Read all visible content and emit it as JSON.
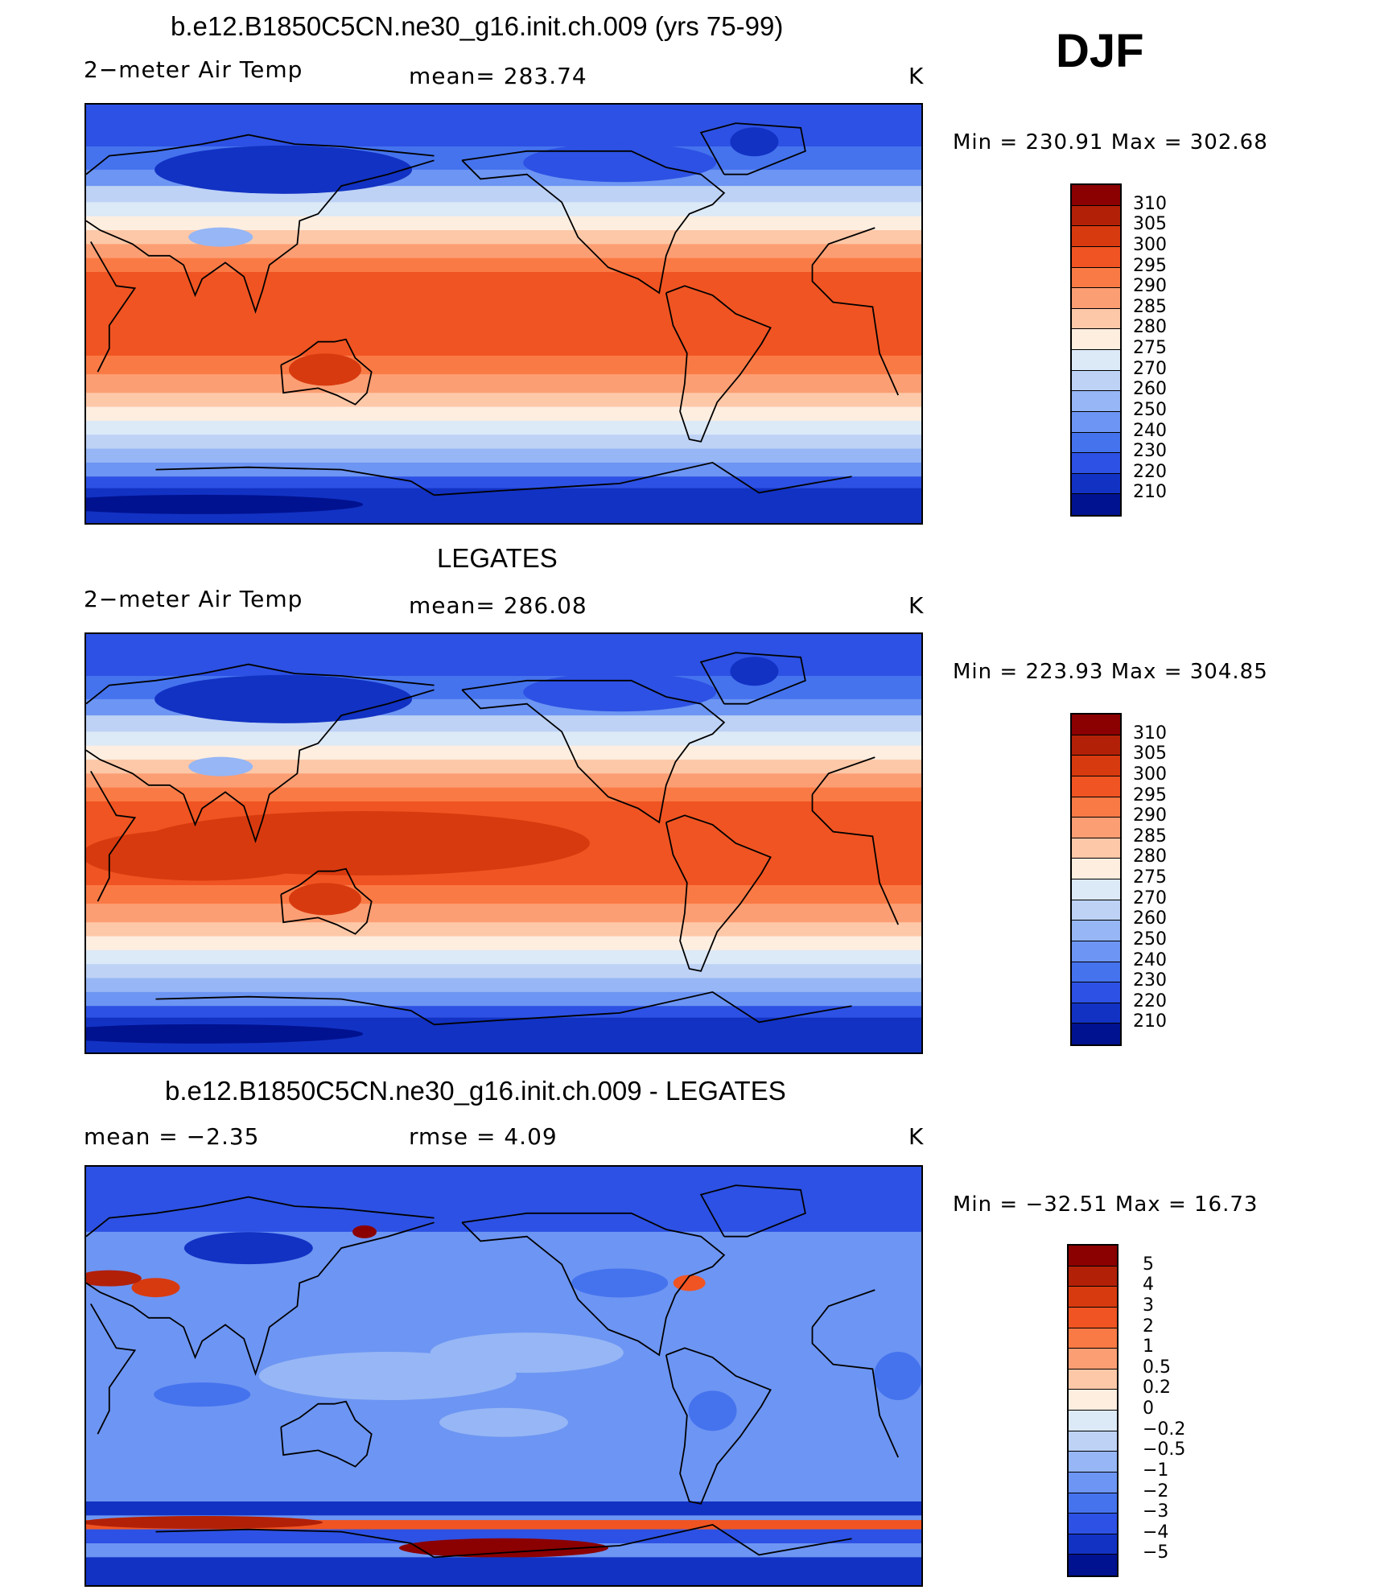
{
  "season": "DJF",
  "panels": [
    {
      "title": "b.e12.B1850C5CN.ne30_g16.init.ch.009 (yrs 75-99)",
      "left_label": "2−meter Air Temp",
      "center_label": "mean=  283.74",
      "units": "K",
      "minmax": "Min  =  230.91  Max  =  302.68",
      "kind": "abs"
    },
    {
      "title": "LEGATES",
      "left_label": "2−meter Air Temp",
      "center_label": "mean=  286.08",
      "units": "K",
      "minmax": "Min  =  223.93  Max  =  304.85",
      "kind": "abs2"
    },
    {
      "title": "b.e12.B1850C5CN.ne30_g16.init.ch.009 - LEGATES",
      "left_label": "mean  =    −2.35",
      "center_label": "rmse  =     4.09",
      "units": "K",
      "minmax": "Min  =  −32.51  Max  =    16.73",
      "kind": "diff"
    }
  ],
  "colorbars": {
    "abs": {
      "labels": [
        "310",
        "305",
        "300",
        "295",
        "290",
        "285",
        "280",
        "275",
        "270",
        "260",
        "250",
        "240",
        "230",
        "220",
        "210"
      ],
      "colors": [
        "#8b0000",
        "#b22008",
        "#d83a0f",
        "#f05422",
        "#fa7a45",
        "#fc9e73",
        "#fdc8a8",
        "#fdeee0",
        "#dce9f7",
        "#bdd2f5",
        "#96b6f5",
        "#6d95f3",
        "#4573ee",
        "#2d51e4",
        "#1232c4",
        "#00128f"
      ]
    },
    "diff": {
      "labels": [
        "5",
        "4",
        "3",
        "2",
        "1",
        "0.5",
        "0.2",
        "0",
        "−0.2",
        "−0.5",
        "−1",
        "−2",
        "−3",
        "−4",
        "−5"
      ],
      "colors": [
        "#8b0000",
        "#b22008",
        "#d83a0f",
        "#f05422",
        "#fa7a45",
        "#fc9e73",
        "#fdc8a8",
        "#fdeee0",
        "#dce9f7",
        "#bdd2f5",
        "#96b6f5",
        "#6d95f3",
        "#4573ee",
        "#2d51e4",
        "#1232c4",
        "#00128f"
      ]
    }
  }
}
